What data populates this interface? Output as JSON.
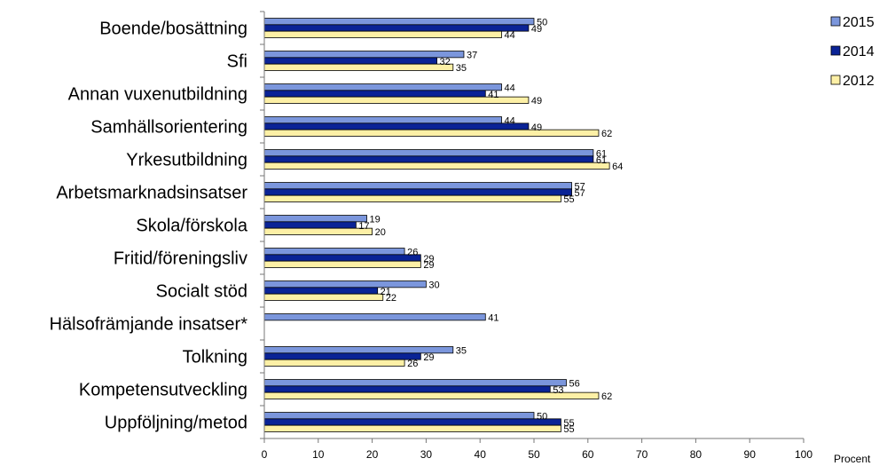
{
  "chart_data": {
    "type": "bar",
    "orientation": "horizontal",
    "categories": [
      "Boende/bosättning",
      "Sfi",
      "Annan vuxenutbildning",
      "Samhällsorientering",
      "Yrkesutbildning",
      "Arbetsmarknadsinsatser",
      "Skola/förskola",
      "Fritid/föreningsliv",
      "Socialt stöd",
      "Hälsofrämjande insatser*",
      "Tolkning",
      "Kompetensutveckling",
      "Uppföljning/metod"
    ],
    "series": [
      {
        "name": "2015",
        "color": "#7b96dc",
        "values": [
          50,
          37,
          44,
          44,
          61,
          57,
          19,
          26,
          30,
          41,
          35,
          56,
          50
        ]
      },
      {
        "name": "2014",
        "color": "#0a2396",
        "values": [
          49,
          32,
          41,
          49,
          61,
          57,
          17,
          29,
          21,
          null,
          29,
          53,
          55
        ]
      },
      {
        "name": "2012",
        "color": "#fdf0a6",
        "values": [
          44,
          35,
          49,
          62,
          64,
          55,
          20,
          29,
          22,
          null,
          26,
          62,
          55
        ]
      }
    ],
    "xlim": [
      0,
      100
    ],
    "xticks": [
      0,
      10,
      20,
      30,
      40,
      50,
      60,
      70,
      80,
      90,
      100
    ],
    "xlabel": "Procent",
    "legend_position": "top-right",
    "grid": false
  }
}
